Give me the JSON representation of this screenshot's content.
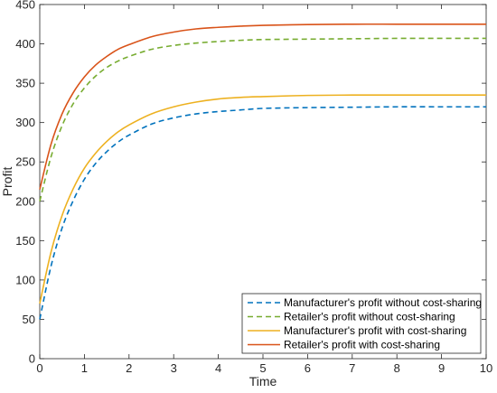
{
  "chart_data": {
    "type": "line",
    "xlabel": "Time",
    "ylabel": "Profit",
    "xlim": [
      0,
      10
    ],
    "ylim": [
      0,
      450
    ],
    "xticks": [
      0,
      1,
      2,
      3,
      4,
      5,
      6,
      7,
      8,
      9,
      10
    ],
    "yticks": [
      0,
      50,
      100,
      150,
      200,
      250,
      300,
      350,
      400,
      450
    ],
    "grid": false,
    "legend_position": "bottom-right",
    "x": [
      0,
      0.25,
      0.5,
      0.75,
      1,
      1.25,
      1.5,
      1.75,
      2,
      2.5,
      3,
      3.5,
      4,
      4.5,
      5,
      6,
      7,
      8,
      9,
      10
    ],
    "series": [
      {
        "name": "Manufacturer's profit without cost-sharing",
        "style": "dashed",
        "color": "#0072BD",
        "values": [
          50,
          117,
          166,
          201,
          228,
          248,
          263,
          275,
          284,
          298,
          306,
          311,
          314,
          316,
          318,
          319,
          319.5,
          320,
          320,
          320
        ]
      },
      {
        "name": "Retailer's profit without cost-sharing",
        "style": "dashed",
        "color": "#77AC30",
        "values": [
          200,
          256,
          296,
          324,
          344,
          359,
          370,
          378,
          384,
          393,
          398,
          401,
          403,
          404.5,
          405.5,
          406,
          406.5,
          407,
          407,
          407
        ]
      },
      {
        "name": "Manufacturer's profit with cost-sharing",
        "style": "solid",
        "color": "#EDB120",
        "values": [
          70,
          135,
          182,
          216,
          242,
          261,
          276,
          288,
          297,
          311,
          320,
          326,
          330,
          332,
          333,
          334.5,
          335,
          335,
          335,
          335
        ]
      },
      {
        "name": "Retailer's profit with cost-sharing",
        "style": "solid",
        "color": "#D95319",
        "values": [
          215,
          272,
          311,
          338,
          358,
          373,
          384,
          393,
          399,
          409,
          415,
          419,
          421,
          422.5,
          423.5,
          424.5,
          425,
          425,
          425,
          425
        ]
      }
    ]
  }
}
